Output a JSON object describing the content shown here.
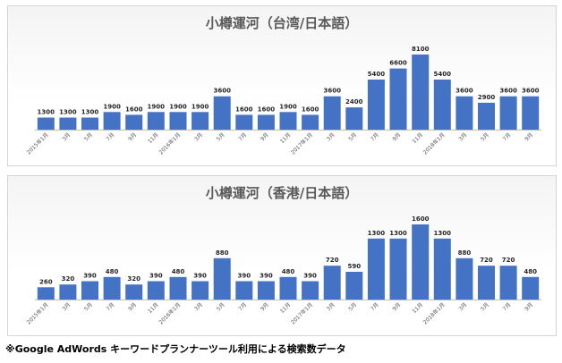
{
  "chart_data": [
    {
      "type": "bar",
      "title": "小樽運河（台湾/日本語）",
      "categories": [
        "2015年1月",
        "3月",
        "5月",
        "7月",
        "9月",
        "11月",
        "2016年1月",
        "3月",
        "5月",
        "7月",
        "9月",
        "11月",
        "2017年1月",
        "3月",
        "5月",
        "7月",
        "9月",
        "11月",
        "2018年1月",
        "3月",
        "5月",
        "7月",
        "9月"
      ],
      "values": [
        1300,
        1300,
        1300,
        1900,
        1600,
        1900,
        1900,
        1900,
        3600,
        1600,
        1600,
        1900,
        1600,
        3600,
        2400,
        5400,
        6600,
        8100,
        5400,
        3600,
        2900,
        3600,
        3600
      ],
      "ylim": [
        0,
        8100
      ],
      "grid": false,
      "bar_color": "#4472c4"
    },
    {
      "type": "bar",
      "title": "小樽運河（香港/日本語）",
      "categories": [
        "2015年1月",
        "3月",
        "5月",
        "7月",
        "9月",
        "11月",
        "2016年1月",
        "3月",
        "5月",
        "7月",
        "9月",
        "11月",
        "2017年1月",
        "3月",
        "5月",
        "7月",
        "9月",
        "11月",
        "2018年1月",
        "3月",
        "5月",
        "7月",
        "9月"
      ],
      "values": [
        260,
        320,
        390,
        480,
        320,
        390,
        480,
        390,
        880,
        390,
        390,
        480,
        390,
        720,
        590,
        1300,
        1300,
        1600,
        1300,
        880,
        720,
        720,
        480
      ],
      "ylim": [
        0,
        1600
      ],
      "grid": false,
      "bar_color": "#4472c4"
    }
  ],
  "footnote": "※Google AdWords キーワードプランナーツール利用による検索数データ"
}
